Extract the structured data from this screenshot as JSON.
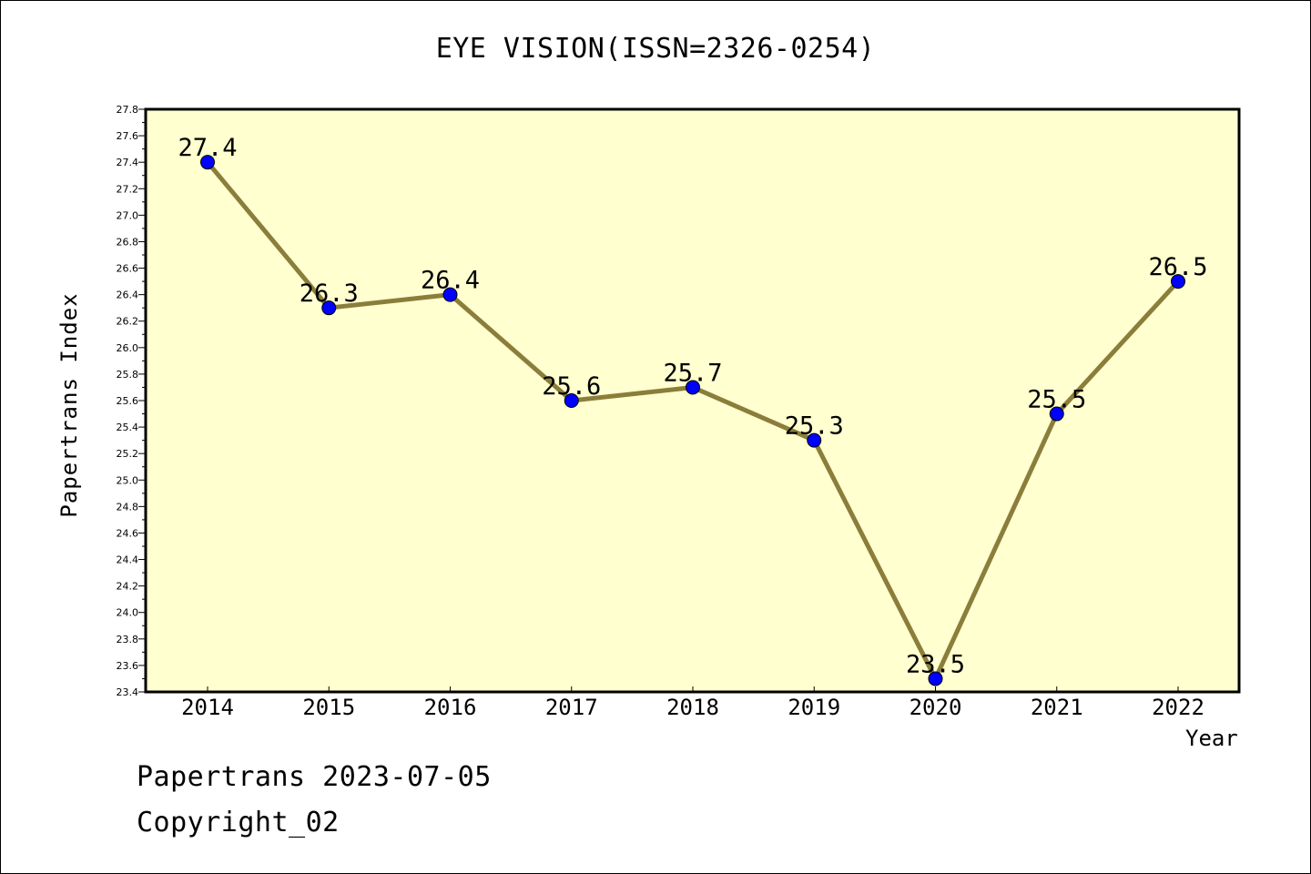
{
  "chart_data": {
    "type": "line",
    "title": "EYE VISION(ISSN=2326-0254)",
    "xlabel": "Year",
    "ylabel": "Papertrans Index",
    "categories": [
      "2014",
      "2015",
      "2016",
      "2017",
      "2018",
      "2019",
      "2020",
      "2021",
      "2022"
    ],
    "values": [
      27.4,
      26.3,
      26.4,
      25.6,
      25.7,
      25.3,
      23.5,
      25.5,
      26.5
    ],
    "data_labels": [
      "27.4",
      "26.3",
      "26.4",
      "25.6",
      "25.7",
      "25.3",
      "23.5",
      "25.5",
      "26.5"
    ],
    "ylim": [
      23.4,
      27.8
    ],
    "ytick_step": 0.2,
    "y_tick_labels": [
      "23.4",
      "23.6",
      "23.8",
      "24.0",
      "24.2",
      "24.4",
      "24.6",
      "24.8",
      "25.0",
      "25.2",
      "25.4",
      "25.6",
      "25.8",
      "26.0",
      "26.2",
      "26.4",
      "26.6",
      "26.8",
      "27.0",
      "27.2",
      "27.4",
      "27.6",
      "27.8"
    ],
    "grid": false,
    "legend": "none",
    "colors": {
      "plot_background": "#ffffd0",
      "line": "#8b7d3a",
      "marker": "#0000ff",
      "axis": "#000000"
    }
  },
  "footer": {
    "date_text": "Papertrans 2023-07-05",
    "copyright_text": "Copyright_02"
  }
}
